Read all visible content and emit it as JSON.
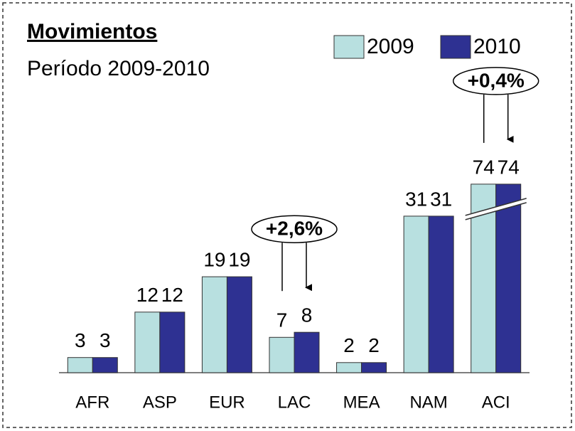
{
  "chart_data": {
    "type": "bar",
    "title": "Movimientos",
    "subtitle": "Período 2009-2010",
    "categories": [
      "AFR",
      "ASP",
      "EUR",
      "LAC",
      "MEA",
      "NAM",
      "ACI"
    ],
    "series": [
      {
        "name": "2009",
        "color": "#b8e0e0",
        "values": [
          3,
          12,
          19,
          7,
          2,
          31,
          74
        ]
      },
      {
        "name": "2010",
        "color": "#2e3192",
        "values": [
          3,
          12,
          19,
          8,
          2,
          31,
          74
        ]
      }
    ],
    "annotations": [
      {
        "text": "+2,6%",
        "category": "LAC"
      },
      {
        "text": "+0,4%",
        "category": "ACI"
      }
    ],
    "legend": "top-right"
  }
}
